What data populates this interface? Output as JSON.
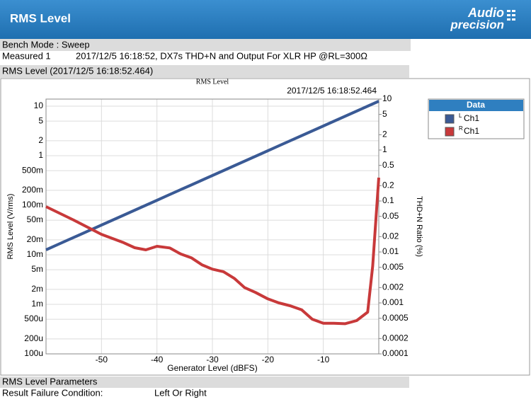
{
  "header": {
    "title": "RMS Level",
    "logo_line1": "Audio",
    "logo_line2": "precision"
  },
  "bench_mode": "Bench Mode : Sweep",
  "measured": {
    "label": "Measured 1",
    "text": "2017/12/5 16:18:52, DX7s THD+N and Output For  XLR HP @RL=300Ω"
  },
  "section_title": "RMS Level (2017/12/5 16:18:52.464)",
  "chart_data": {
    "type": "line",
    "title": "RMS Level",
    "subtitle": "2017/12/5 16:18:52.464",
    "x_label": "Generator Level (dBFS)",
    "y_label": "RMS Level (V/rms)",
    "y2_label": "THD+N Ratio (%)",
    "legend_title": "Data",
    "xlim": [
      -60,
      0
    ],
    "xticks": [
      -50,
      -40,
      -30,
      -20,
      -10
    ],
    "ylim": [
      0.0001,
      13.9
    ],
    "ylog": true,
    "yticks": [
      10,
      5,
      2,
      1,
      {
        "value": 0.5,
        "label": "500m"
      },
      {
        "value": 0.2,
        "label": "200m"
      },
      {
        "value": 0.1,
        "label": "100m"
      },
      {
        "value": 0.05,
        "label": "50m"
      },
      {
        "value": 0.02,
        "label": "20m"
      },
      {
        "value": 0.01,
        "label": "10m"
      },
      {
        "value": 0.005,
        "label": "5m"
      },
      {
        "value": 0.002,
        "label": "2m"
      },
      {
        "value": 0.001,
        "label": "1m"
      },
      {
        "value": 0.0005,
        "label": "500u"
      },
      {
        "value": 0.0002,
        "label": "200u"
      },
      {
        "value": 0.0001,
        "label": "100u"
      }
    ],
    "y2lim": [
      0.0001,
      10
    ],
    "y2log": true,
    "y2ticks": [
      10,
      5,
      2,
      1,
      0.5,
      0.2,
      0.1,
      0.05,
      0.02,
      0.01,
      0.005,
      0.002,
      0.001,
      0.0005,
      0.0002,
      0.0001
    ],
    "grid": true,
    "series": [
      {
        "name": "Ch1",
        "channel": "L",
        "color": "#3a5a95",
        "x": [
          -60,
          -58,
          -56,
          -54,
          -52,
          -50,
          -48,
          -46,
          -44,
          -42,
          -40,
          -38,
          -36,
          -34,
          -32,
          -30,
          -28,
          -26,
          -24,
          -22,
          -20,
          -18,
          -16,
          -14,
          -12,
          -10,
          -8,
          -6,
          -4,
          -2,
          0
        ],
        "values": [
          0.0126,
          0.0159,
          0.02,
          0.0251,
          0.0316,
          0.0398,
          0.0501,
          0.0631,
          0.0794,
          0.1,
          0.126,
          0.159,
          0.2,
          0.251,
          0.316,
          0.398,
          0.501,
          0.631,
          0.794,
          1.0,
          1.26,
          1.59,
          2.0,
          2.51,
          3.16,
          3.98,
          5.01,
          6.31,
          7.94,
          10.0,
          12.6
        ]
      },
      {
        "name": "Ch1",
        "channel": "R",
        "color": "#c8393a",
        "axis": "y2",
        "x": [
          -60,
          -55,
          -50,
          -46,
          -44,
          -42,
          -40,
          -37.7,
          -35.7,
          -33.8,
          -31.9,
          -30,
          -28,
          -26,
          -24.2,
          -22.2,
          -20,
          -18,
          -16,
          -13.9,
          -12,
          -10,
          -8.1,
          -6.1,
          -4,
          -2,
          -1.1,
          0
        ],
        "values": [
          0.0774,
          0.0422,
          0.0222,
          0.0152,
          0.0121,
          0.011,
          0.0129,
          0.012,
          0.0091,
          0.0077,
          0.0056,
          0.0046,
          0.0041,
          0.003,
          0.002,
          0.0016,
          0.0012,
          0.001,
          0.00088,
          0.00073,
          0.00048,
          0.0004,
          0.0004,
          0.00039,
          0.00045,
          0.00066,
          0.0053,
          0.287
        ]
      }
    ]
  },
  "parameters": {
    "title": "RMS Level Parameters",
    "rows": [
      [
        "Result Failure Condition:",
        "Left Or Right"
      ]
    ]
  }
}
